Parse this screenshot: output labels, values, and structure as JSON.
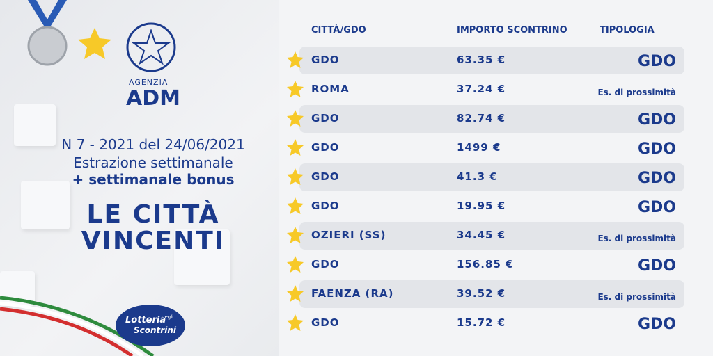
{
  "header": {
    "agency": "AGENZIA",
    "brand": "ADM"
  },
  "draw": {
    "line1": "N 7 - 2021 del 24/06/2021",
    "line2": "Estrazione settimanale",
    "line3": "+ settimanale bonus"
  },
  "title": {
    "line1": "LE CITTÀ",
    "line2": "VINCENTI"
  },
  "logo": {
    "line1": "Lotteria",
    "line2": "degli",
    "line3": "Scontrini"
  },
  "table": {
    "columns": [
      "CITTÀ/GDO",
      "IMPORTO SCONTRINO",
      "TIPOLOGIA"
    ],
    "rows": [
      [
        "GDO",
        "63.35 €",
        "GDO"
      ],
      [
        "ROMA",
        "37.24 €",
        "Es. di prossimità"
      ],
      [
        "GDO",
        "82.74 €",
        "GDO"
      ],
      [
        "GDO",
        "1499 €",
        "GDO"
      ],
      [
        "GDO",
        "41.3 €",
        "GDO"
      ],
      [
        "GDO",
        "19.95 €",
        "GDO"
      ],
      [
        "OZIERI (SS)",
        "34.45 €",
        "Es. di prossimità"
      ],
      [
        "GDO",
        "156.85 €",
        "GDO"
      ],
      [
        "FAENZA (RA)",
        "39.52 €",
        "Es. di prossimità"
      ],
      [
        "GDO",
        "15.72 €",
        "GDO"
      ]
    ]
  }
}
